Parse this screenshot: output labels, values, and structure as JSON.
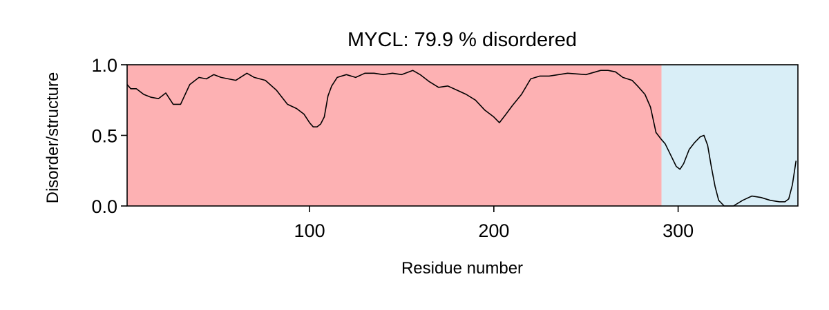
{
  "chart_data": {
    "type": "line",
    "title": "MYCL: 79.9 % disordered",
    "xlabel": "Residue number",
    "ylabel": "Disorder/structure",
    "xlim": [
      1,
      365
    ],
    "ylim": [
      0.0,
      1.0
    ],
    "xticks": [
      100,
      200,
      300
    ],
    "yticks": [
      0.0,
      0.5,
      1.0
    ],
    "ytick_labels": [
      "0.0",
      "0.5",
      "1.0"
    ],
    "grid": false,
    "regions": [
      {
        "start": 1,
        "end": 291,
        "color": "#fdb1b3"
      },
      {
        "start": 291,
        "end": 365,
        "color": "#d9eef7"
      }
    ],
    "series": [
      {
        "color": "#000000",
        "x": [
          1,
          3,
          6,
          10,
          14,
          18,
          22,
          26,
          30,
          35,
          40,
          44,
          48,
          52,
          56,
          60,
          66,
          70,
          76,
          82,
          88,
          93,
          97,
          100,
          102,
          104,
          106,
          108,
          110,
          112,
          115,
          120,
          125,
          130,
          135,
          140,
          145,
          150,
          156,
          160,
          165,
          170,
          175,
          180,
          185,
          190,
          195,
          200,
          203,
          206,
          210,
          215,
          220,
          225,
          230,
          240,
          250,
          258,
          262,
          266,
          270,
          275,
          278,
          282,
          285,
          288,
          291,
          293,
          296,
          299,
          301,
          303,
          306,
          309,
          312,
          314,
          316,
          318,
          320,
          322,
          325,
          330,
          335,
          340,
          345,
          350,
          355,
          358,
          360,
          362,
          364
        ],
        "y": [
          0.86,
          0.83,
          0.83,
          0.79,
          0.77,
          0.76,
          0.8,
          0.72,
          0.72,
          0.86,
          0.91,
          0.9,
          0.93,
          0.91,
          0.9,
          0.89,
          0.94,
          0.91,
          0.89,
          0.82,
          0.72,
          0.69,
          0.65,
          0.59,
          0.56,
          0.56,
          0.58,
          0.63,
          0.78,
          0.85,
          0.91,
          0.93,
          0.91,
          0.94,
          0.94,
          0.93,
          0.94,
          0.93,
          0.96,
          0.93,
          0.88,
          0.84,
          0.85,
          0.82,
          0.79,
          0.75,
          0.68,
          0.63,
          0.59,
          0.64,
          0.71,
          0.79,
          0.9,
          0.92,
          0.92,
          0.94,
          0.93,
          0.96,
          0.96,
          0.95,
          0.91,
          0.89,
          0.85,
          0.79,
          0.7,
          0.52,
          0.47,
          0.44,
          0.36,
          0.28,
          0.26,
          0.3,
          0.4,
          0.45,
          0.49,
          0.5,
          0.43,
          0.28,
          0.14,
          0.04,
          0.0,
          0.0,
          0.04,
          0.07,
          0.06,
          0.04,
          0.03,
          0.03,
          0.05,
          0.15,
          0.32
        ]
      }
    ]
  }
}
